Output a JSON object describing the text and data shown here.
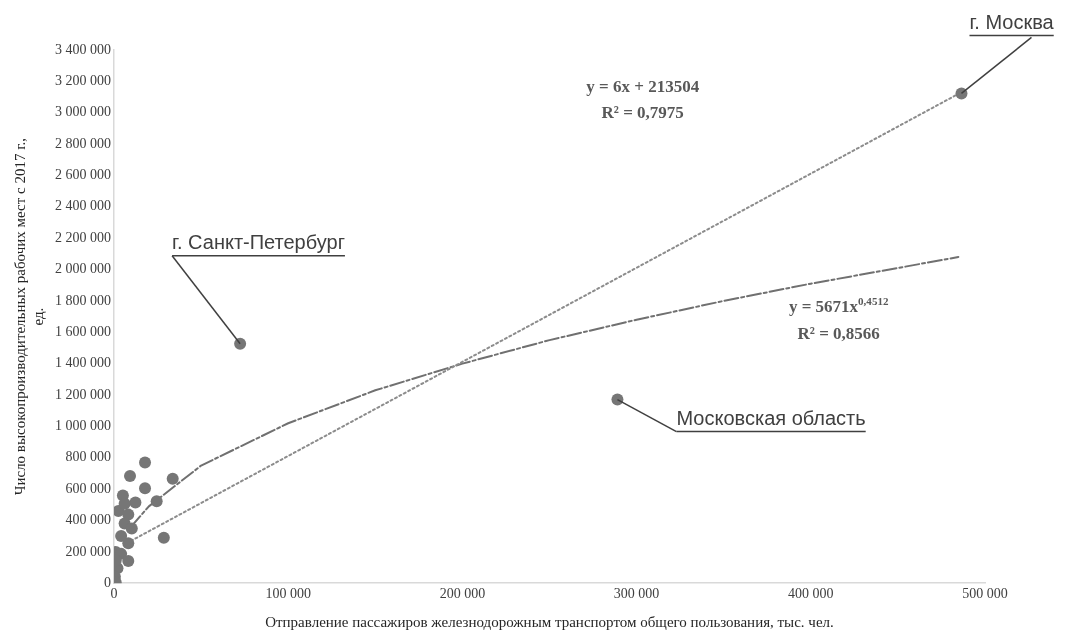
{
  "chart_data": {
    "type": "scatter",
    "xlabel": "Отправление пассажиров железнодорожным транспортом общего пользования, тыс. чел.",
    "ylabel": "Число высокопроизводительных рабочих мест с 2017 г., ед.",
    "xlim": [
      0,
      500000
    ],
    "xticks": [
      {
        "value": 0,
        "label": "0"
      },
      {
        "value": 100000,
        "label": "100 000"
      },
      {
        "value": 200000,
        "label": "200 000"
      },
      {
        "value": 300000,
        "label": "300 000"
      },
      {
        "value": 400000,
        "label": "400 000"
      },
      {
        "value": 500000,
        "label": "500 000"
      }
    ],
    "ylim": [
      0,
      3400000
    ],
    "yticks": [
      {
        "value": 0,
        "label": "0"
      },
      {
        "value": 200000,
        "label": "200 000"
      },
      {
        "value": 400000,
        "label": "400 000"
      },
      {
        "value": 600000,
        "label": "600 000"
      },
      {
        "value": 800000,
        "label": "800 000"
      },
      {
        "value": 1000000,
        "label": "1 000 000"
      },
      {
        "value": 1200000,
        "label": "1 200 000"
      },
      {
        "value": 1400000,
        "label": "1 400 000"
      },
      {
        "value": 1600000,
        "label": "1 600 000"
      },
      {
        "value": 1800000,
        "label": "1 800 000"
      },
      {
        "value": 2000000,
        "label": "2 000 000"
      },
      {
        "value": 2200000,
        "label": "2 200 000"
      },
      {
        "value": 2400000,
        "label": "2 400 000"
      },
      {
        "value": 2600000,
        "label": "2 600 000"
      },
      {
        "value": 2800000,
        "label": "2 800 000"
      },
      {
        "value": 3000000,
        "label": "3 000 000"
      },
      {
        "value": 3200000,
        "label": "3 200 000"
      },
      {
        "value": 3400000,
        "label": "3 400 000"
      }
    ],
    "grid": false,
    "legend": false,
    "marker": "circle",
    "series": [
      {
        "color": "#767676",
        "x": [
          486500,
          72400,
          289000,
          17800,
          9200,
          33700,
          17800,
          5100,
          12300,
          24500,
          2500,
          8200,
          28600,
          6100,
          4100,
          8200,
          1000,
          4100,
          8200,
          2000,
          500,
          1000,
          6100,
          10200,
          1000
        ],
        "values": [
          3123000,
          1527000,
          1171000,
          769000,
          683000,
          666000,
          605000,
          559000,
          514000,
          523000,
          461000,
          438000,
          290000,
          381000,
          301000,
          255000,
          199000,
          187000,
          142000,
          96000,
          41000,
          5000,
          507000,
          349000,
          144000
        ]
      },
      {
        "type": "line",
        "color": "#8c8c8c",
        "line_style": "dotted",
        "marker": "none",
        "x": [
          9800,
          484700
        ],
        "values": [
          270000,
          3120000
        ]
      },
      {
        "type": "line",
        "color": "#707070",
        "line_style": "dashed",
        "marker": "none",
        "x": [
          9800,
          20000,
          50000,
          100000,
          150000,
          200000,
          250000,
          300000,
          350000,
          400000,
          450000,
          484700
        ],
        "values": [
          360000,
          490000,
          750000,
          1020000,
          1230000,
          1400000,
          1550000,
          1680000,
          1800000,
          1910000,
          2010000,
          2080000
        ]
      }
    ],
    "annotations": [
      {
        "text": "г. Москва",
        "x": 486500,
        "y": 3123000
      },
      {
        "text": "г. Санкт-Петербург",
        "x": 72400,
        "y": 1527000
      },
      {
        "text": "Московская область",
        "x": 289000,
        "y": 1171000
      },
      "y = 6x + 213504",
      "R² = 0,7975",
      "y = 5671x$^{0,4512}$",
      "R² = 0,8566"
    ]
  }
}
